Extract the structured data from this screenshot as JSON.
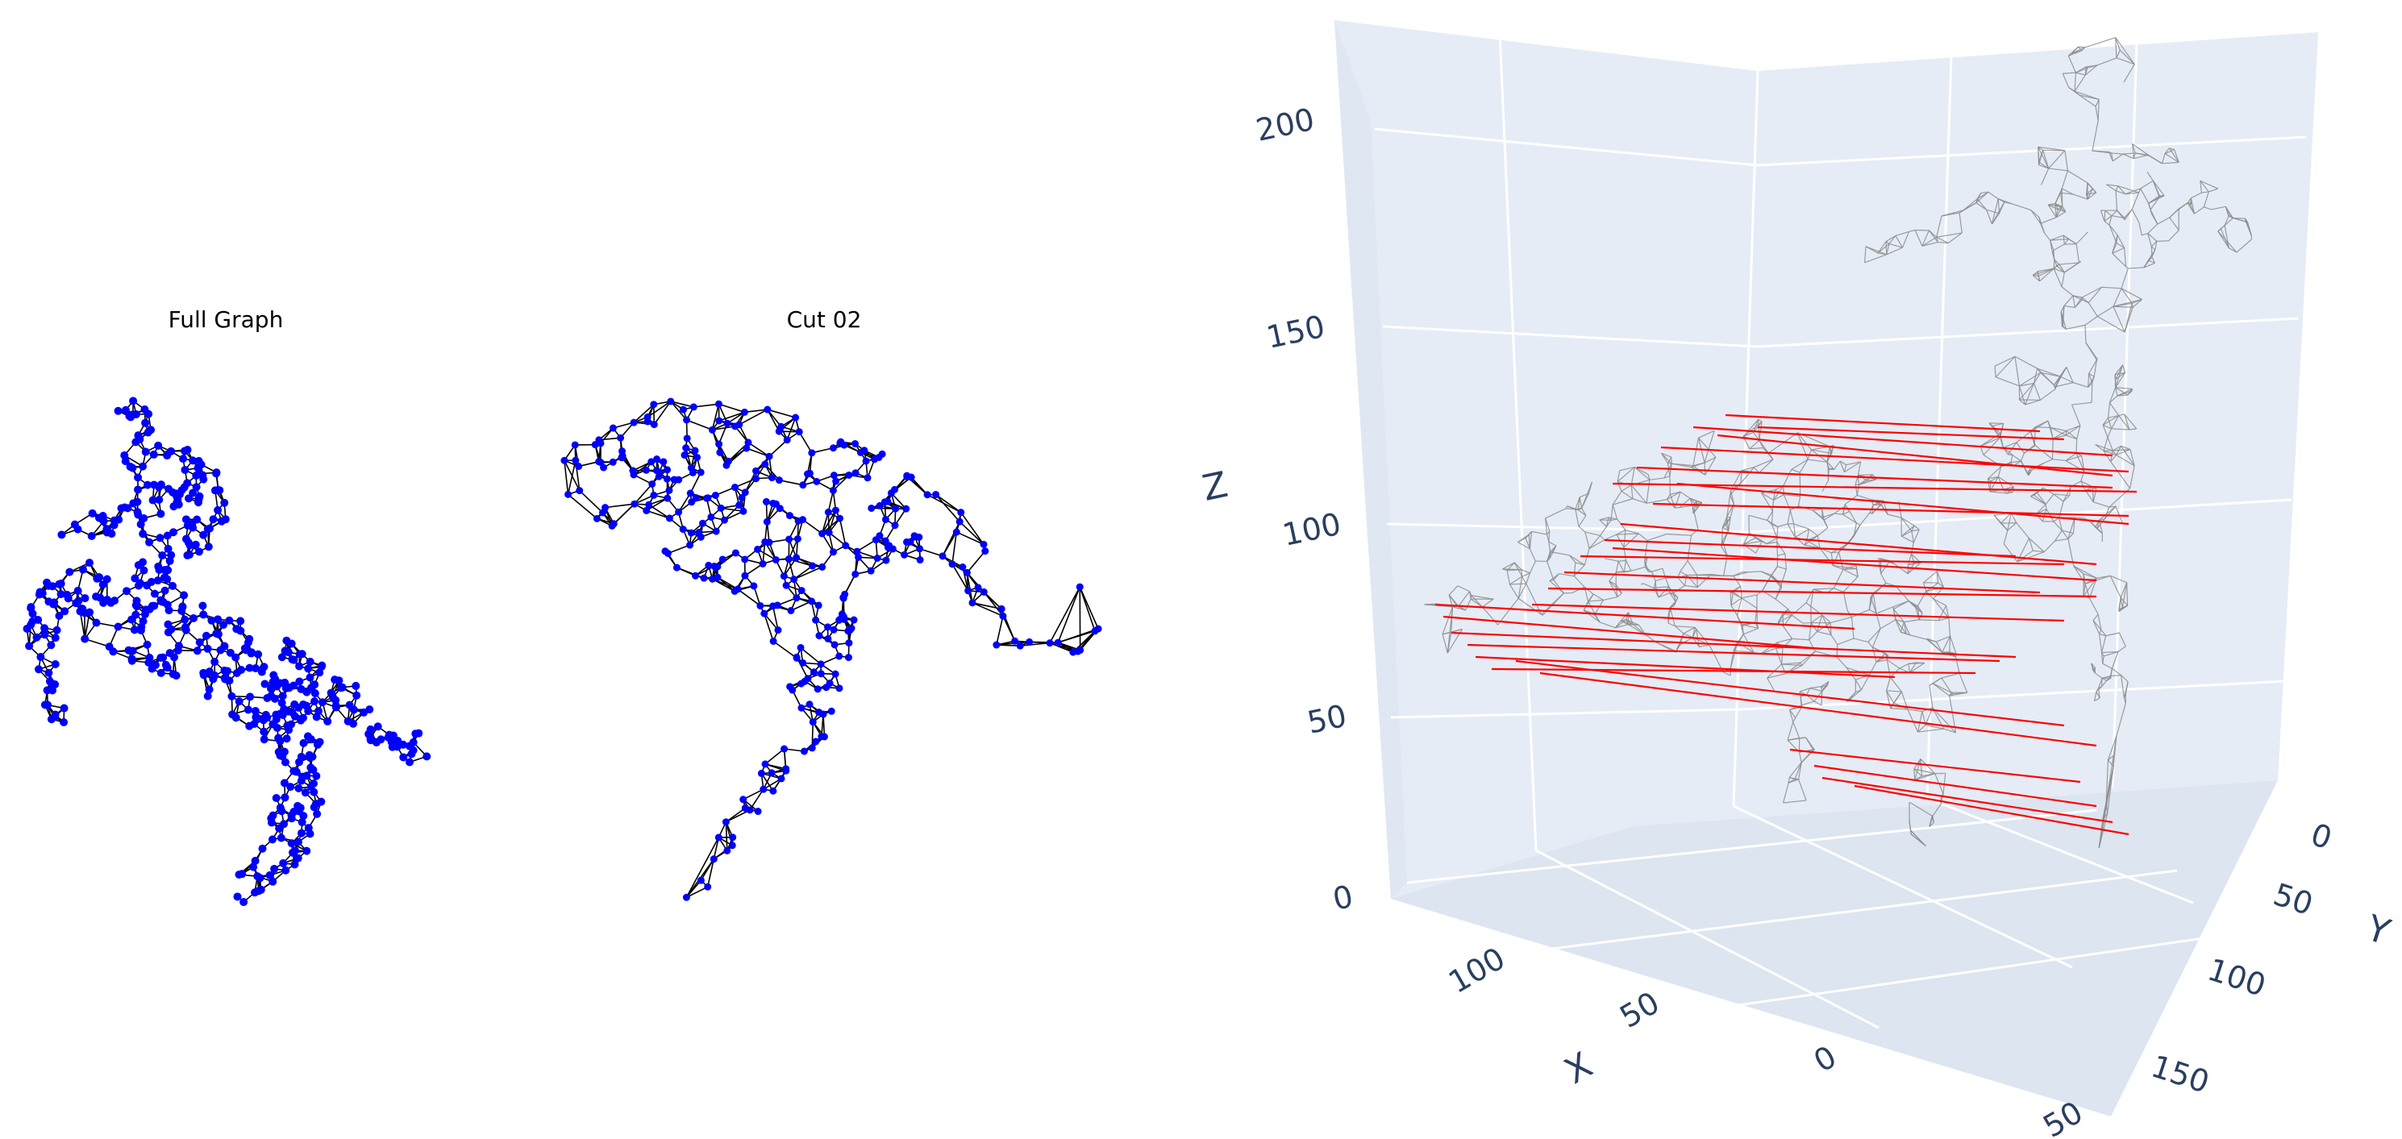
{
  "panels": {
    "left_title": "Full Graph",
    "middle_title": "Cut 02"
  },
  "scene": {
    "z_ticks": [
      "0",
      "50",
      "100",
      "150",
      "200"
    ],
    "x_ticks": [
      "100",
      "50",
      "0",
      "50"
    ],
    "y_ticks": [
      "0",
      "50",
      "100",
      "150"
    ],
    "z_title": "Z",
    "x_title": "X",
    "y_title": "Y",
    "colors": {
      "background": "#e5ecf6",
      "grid": "#ffffff",
      "mesh": "#8c8c8c",
      "correspondence": "#ff0000",
      "node": "#0000ff",
      "edge": "#000000"
    }
  }
}
